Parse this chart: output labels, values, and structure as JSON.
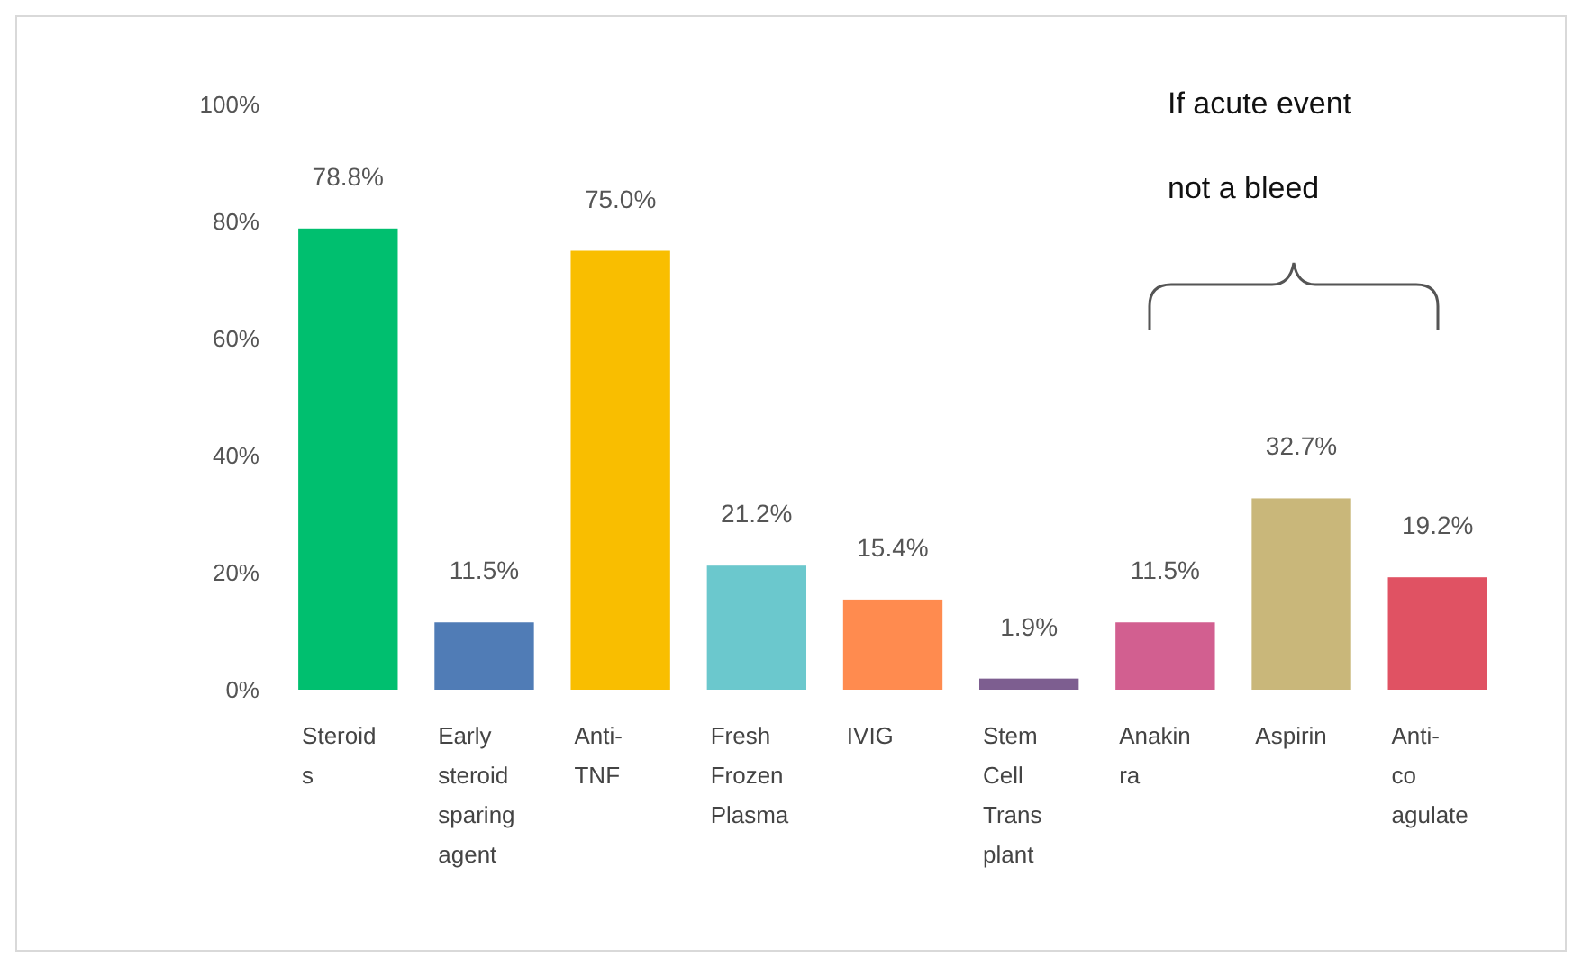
{
  "chart_data": {
    "type": "bar",
    "categories": [
      "Steroid\ns",
      "Early\nsteroid\nsparing\nagent",
      "Anti-\nTNF",
      "Fresh\nFrozen\nPlasma",
      "IVIG",
      "Stem\nCell\nTrans\nplant",
      "Anakin\nra",
      "Aspirin",
      "Anti-\nco\nagulate"
    ],
    "values": [
      78.8,
      11.5,
      75.0,
      21.2,
      15.4,
      1.9,
      11.5,
      32.7,
      19.2
    ],
    "colors": [
      "#00bf6f",
      "#507cb6",
      "#f9be00",
      "#6bc8cd",
      "#ff8b4f",
      "#7d5e90",
      "#d25f90",
      "#c9b77a",
      "#e05263"
    ],
    "value_labels": [
      "78.8%",
      "11.5%",
      "75.0%",
      "21.2%",
      "15.4%",
      "1.9%",
      "11.5%",
      "32.7%",
      "19.2%"
    ],
    "ylim": [
      0,
      100
    ],
    "yticks": [
      {
        "value": 0,
        "label": "0%"
      },
      {
        "value": 20,
        "label": "20%"
      },
      {
        "value": 40,
        "label": "40%"
      },
      {
        "value": 60,
        "label": "60%"
      },
      {
        "value": 80,
        "label": "80%"
      },
      {
        "value": 100,
        "label": "100%"
      }
    ],
    "annotations": [
      "If acute event\nnot a bleed"
    ]
  }
}
